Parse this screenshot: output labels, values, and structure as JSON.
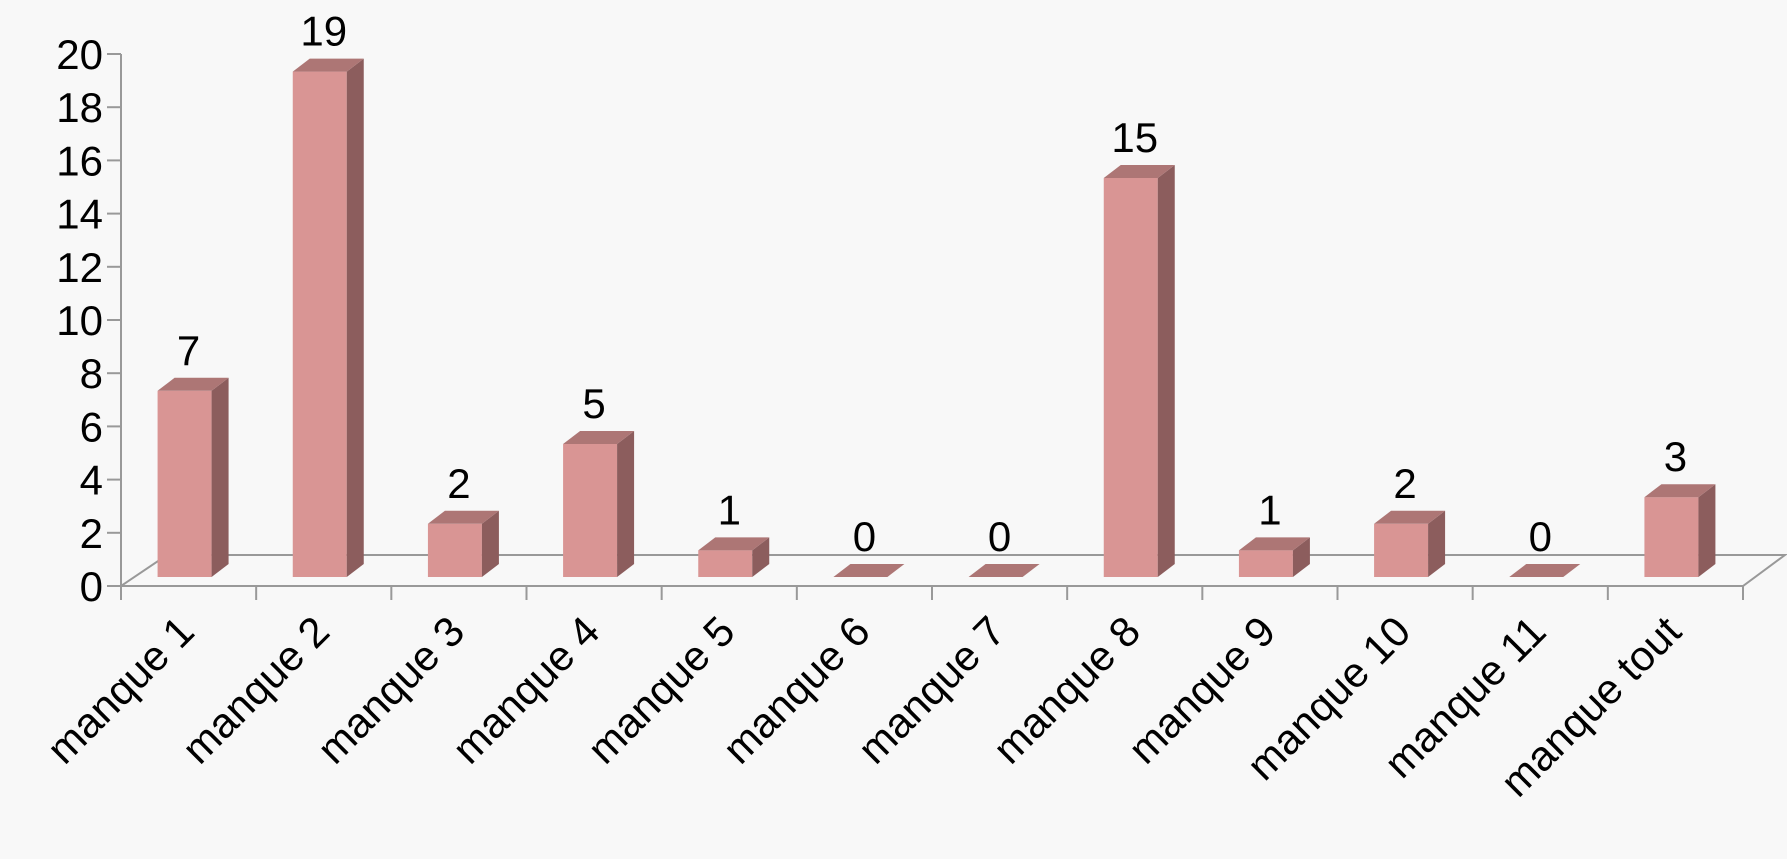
{
  "chart_data": {
    "type": "bar",
    "title": "",
    "xlabel": "",
    "ylabel": "",
    "ylim": [
      0,
      20
    ],
    "yticks": [
      "0",
      "2",
      "4",
      "6",
      "8",
      "10",
      "12",
      "14",
      "16",
      "18",
      "20"
    ],
    "categories": [
      "manque 1",
      "manque 2",
      "manque 3",
      "manque 4",
      "manque 5",
      "manque 6",
      "manque 7",
      "manque 8",
      "manque 9",
      "manque 10",
      "manque 11",
      "manque tout"
    ],
    "values": [
      7,
      19,
      2,
      5,
      1,
      0,
      0,
      15,
      1,
      2,
      0,
      3
    ],
    "data_labels": [
      "7",
      "19",
      "2",
      "5",
      "1",
      "0",
      "0",
      "15",
      "1",
      "2",
      "0",
      "3"
    ],
    "style": "3d-column",
    "grid": false,
    "colors": {
      "front": "#d99594",
      "side": "#8c5d5d",
      "top": "#ad7675",
      "axis": "#999999",
      "background": "#f8f8f8"
    }
  }
}
